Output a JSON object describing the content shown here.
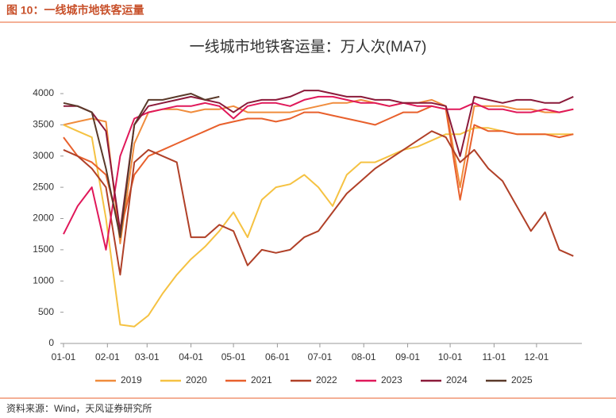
{
  "header": {
    "title": "图 10：一线城市地铁客运量"
  },
  "footer": {
    "source": "资料来源：Wind，天风证券研究所"
  },
  "chart_data": {
    "type": "line",
    "title": "一线城市地铁客运量：万人次(MA7)",
    "x": [
      0,
      10,
      20,
      30,
      40,
      50,
      60,
      70,
      80,
      90,
      100,
      110,
      120,
      130,
      140,
      150,
      160,
      170,
      180,
      190,
      200,
      210,
      220,
      230,
      240,
      250,
      260,
      270,
      280,
      290,
      300,
      310,
      320,
      330,
      340,
      350,
      360
    ],
    "xlim": [
      0,
      366
    ],
    "xticks": [
      {
        "value": 0,
        "label": "01-01"
      },
      {
        "value": 31,
        "label": "02-01"
      },
      {
        "value": 59,
        "label": "03-01"
      },
      {
        "value": 90,
        "label": "04-01"
      },
      {
        "value": 120,
        "label": "05-01"
      },
      {
        "value": 151,
        "label": "06-01"
      },
      {
        "value": 181,
        "label": "07-01"
      },
      {
        "value": 212,
        "label": "08-01"
      },
      {
        "value": 243,
        "label": "09-01"
      },
      {
        "value": 273,
        "label": "10-01"
      },
      {
        "value": 304,
        "label": "11-01"
      },
      {
        "value": 334,
        "label": "12-01"
      }
    ],
    "ylim": [
      0,
      4000
    ],
    "yticks": [
      0,
      500,
      1000,
      1500,
      2000,
      2500,
      3000,
      3500,
      4000
    ],
    "grid": false,
    "legend": "bottom",
    "series": [
      {
        "name": "2019",
        "color": "#f08c3c",
        "values": [
          3500,
          3550,
          3600,
          3550,
          1600,
          3200,
          3700,
          3750,
          3750,
          3700,
          3750,
          3750,
          3800,
          3700,
          3700,
          3700,
          3700,
          3750,
          3800,
          3850,
          3850,
          3900,
          3850,
          3800,
          3850,
          3850,
          3900,
          3800,
          2500,
          3800,
          3800,
          3800,
          3750,
          3750,
          3700,
          3700,
          3750
        ]
      },
      {
        "name": "2020",
        "color": "#f5c242",
        "values": [
          3500,
          3400,
          3300,
          2000,
          300,
          270,
          450,
          800,
          1100,
          1350,
          1550,
          1800,
          2100,
          1700,
          2300,
          2500,
          2550,
          2700,
          2500,
          2200,
          2700,
          2900,
          2900,
          3000,
          3100,
          3150,
          3250,
          3350,
          3350,
          3450,
          3450,
          3400,
          3350,
          3350,
          3350,
          3350,
          3350
        ]
      },
      {
        "name": "2021",
        "color": "#e8602c",
        "values": [
          3300,
          3000,
          2900,
          2700,
          1800,
          2700,
          3000,
          3100,
          3200,
          3300,
          3400,
          3500,
          3550,
          3600,
          3600,
          3550,
          3600,
          3700,
          3700,
          3650,
          3600,
          3550,
          3500,
          3600,
          3700,
          3700,
          3800,
          3750,
          2300,
          3500,
          3400,
          3400,
          3350,
          3350,
          3350,
          3300,
          3350
        ]
      },
      {
        "name": "2022",
        "color": "#b04028",
        "values": [
          3100,
          3000,
          2800,
          2500,
          1100,
          2900,
          3100,
          3000,
          2900,
          1700,
          1700,
          1900,
          1800,
          1250,
          1500,
          1450,
          1500,
          1700,
          1800,
          2100,
          2400,
          2600,
          2800,
          2950,
          3100,
          3250,
          3400,
          3300,
          2900,
          3100,
          2800,
          2600,
          2200,
          1800,
          2100,
          1500,
          1400
        ]
      },
      {
        "name": "2023",
        "color": "#e0185a",
        "values": [
          1750,
          2200,
          2500,
          1500,
          3000,
          3600,
          3700,
          3750,
          3800,
          3800,
          3850,
          3800,
          3600,
          3800,
          3850,
          3850,
          3800,
          3900,
          3950,
          3950,
          3900,
          3850,
          3850,
          3800,
          3850,
          3800,
          3800,
          3750,
          3750,
          3850,
          3750,
          3750,
          3700,
          3700,
          3750,
          3700,
          3750
        ]
      },
      {
        "name": "2024",
        "color": "#8b1a3a",
        "values": [
          3800,
          3800,
          3700,
          3400,
          1800,
          3500,
          3800,
          3850,
          3900,
          3950,
          3900,
          3850,
          3700,
          3850,
          3900,
          3900,
          3950,
          4050,
          4050,
          4000,
          3950,
          3950,
          3900,
          3900,
          3850,
          3850,
          3850,
          3800,
          3000,
          3950,
          3900,
          3850,
          3900,
          3900,
          3850,
          3850,
          3950
        ]
      },
      {
        "name": "2025",
        "color": "#5a3a2a",
        "values": [
          3850,
          3800,
          3700,
          2800,
          1700,
          3500,
          3900,
          3900,
          3950,
          4000,
          3900,
          3950,
          null,
          null,
          null,
          null,
          null,
          null,
          null,
          null,
          null,
          null,
          null,
          null,
          null,
          null,
          null,
          null,
          null,
          null,
          null,
          null,
          null,
          null,
          null,
          null,
          null
        ]
      }
    ]
  }
}
